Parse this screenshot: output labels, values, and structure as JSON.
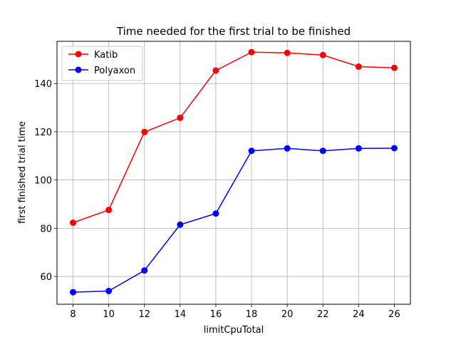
{
  "chart_data": {
    "type": "line",
    "title": "Time needed for the first trial to be finished",
    "xlabel": "limitCpuTotal",
    "ylabel": "first finished trial time",
    "x": [
      8,
      10,
      12,
      14,
      16,
      18,
      20,
      22,
      24,
      26
    ],
    "xticks": [
      8,
      10,
      12,
      14,
      16,
      18,
      20,
      22,
      24,
      26
    ],
    "yticks": [
      60,
      80,
      100,
      120,
      140
    ],
    "xlim": [
      7.1,
      26.9
    ],
    "ylim": [
      48.5,
      157.5
    ],
    "grid": true,
    "legend_position": "top-left",
    "series": [
      {
        "name": "Katib",
        "color": "#ff0000",
        "values": [
          82.3,
          87.6,
          119.9,
          125.8,
          145.4,
          153.0,
          152.7,
          151.8,
          147.0,
          146.5
        ]
      },
      {
        "name": "Polyaxon",
        "color": "#0000ff",
        "values": [
          53.5,
          54.0,
          62.5,
          81.5,
          86.1,
          112.1,
          113.1,
          112.1,
          113.1,
          113.2
        ]
      }
    ]
  }
}
